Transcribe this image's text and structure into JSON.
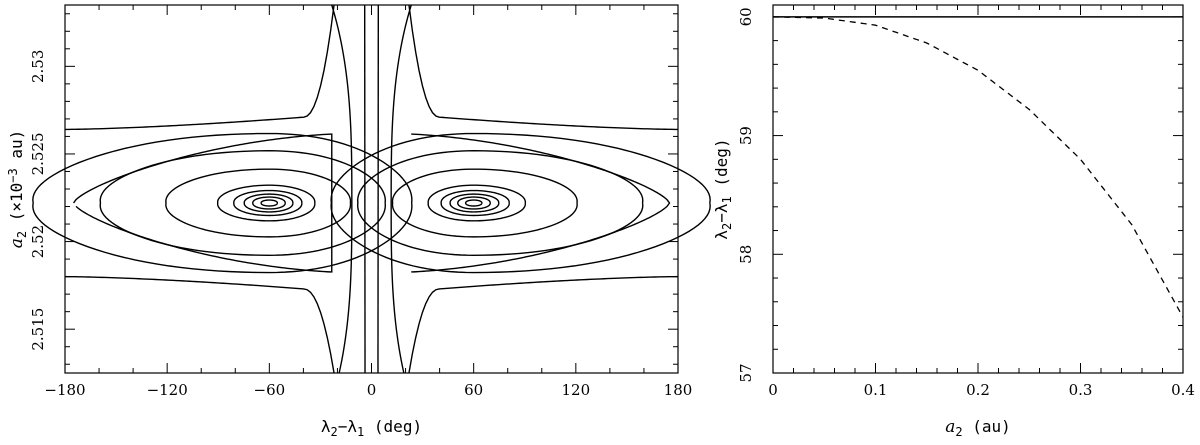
{
  "chart_data": [
    {
      "type": "contour",
      "xlabel_parts": [
        "λ",
        "2",
        "−λ",
        "1",
        " (deg)"
      ],
      "ylabel_parts": [
        "a",
        "2",
        " (×10",
        "−3",
        " au)"
      ],
      "xlim": [
        -180,
        180
      ],
      "ylim": [
        2.5125,
        2.5335
      ],
      "xticks": [
        -180,
        -120,
        -60,
        0,
        60,
        120,
        180
      ],
      "xtick_labels": [
        "−180",
        "−120",
        "−60",
        "0",
        "60",
        "120",
        "180"
      ],
      "yticks": [
        2.515,
        2.52,
        2.525,
        2.53
      ],
      "ytick_labels": [
        "2.515",
        "2.52",
        "2.525",
        "2.53"
      ],
      "centers": [
        -60,
        60
      ],
      "center_y": 2.5222,
      "closed_loop_half_widths_deg": [
        5,
        10,
        15,
        21,
        30,
        57,
        88,
        117
      ],
      "separatrix": {
        "x_min": -175,
        "x_max": 175,
        "a_max": 2.5262,
        "a_min": 2.5182
      },
      "open_curves": [
        {
          "side": "top",
          "a_at_edge": 2.5264,
          "dip_x": 22
        },
        {
          "side": "bottom",
          "a_at_edge": 2.518,
          "dip_x": 22
        }
      ],
      "central_vertical_curves": [
        {
          "x_outer": 21,
          "x_inner": 4
        },
        {
          "x_outer": -21,
          "x_inner": -4
        }
      ],
      "grid": false
    },
    {
      "type": "line",
      "xlabel_parts": [
        "a",
        "2",
        " (au)"
      ],
      "ylabel_parts": [
        "λ",
        "2",
        "−λ",
        "1",
        " (deg)"
      ],
      "xlim": [
        0,
        0.4
      ],
      "ylim": [
        57,
        60.1
      ],
      "xticks": [
        0,
        0.1,
        0.2,
        0.3,
        0.4
      ],
      "xtick_labels": [
        "0",
        "0.1",
        "0.2",
        "0.3",
        "0.4"
      ],
      "yticks": [
        57,
        58,
        59,
        60
      ],
      "ytick_labels": [
        "57",
        "58",
        "59",
        "60"
      ],
      "series": [
        {
          "style": "solid",
          "x": [
            0,
            0.4
          ],
          "y": [
            60,
            60
          ]
        },
        {
          "style": "dashed",
          "x": [
            0,
            0.05,
            0.1,
            0.15,
            0.2,
            0.25,
            0.3,
            0.35,
            0.4
          ],
          "y": [
            60.0,
            59.99,
            59.93,
            59.78,
            59.55,
            59.22,
            58.8,
            58.25,
            57.47
          ]
        }
      ],
      "grid": false
    }
  ]
}
